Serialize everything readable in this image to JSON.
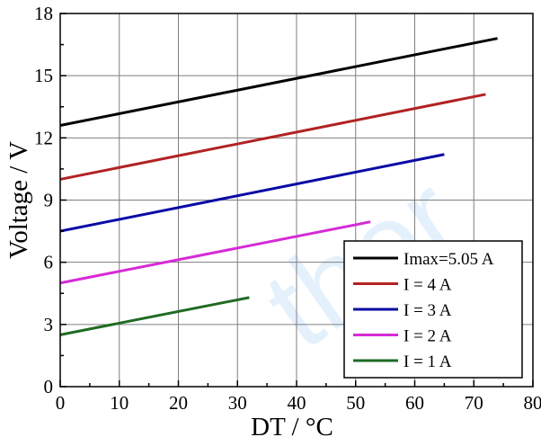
{
  "chart_data": {
    "type": "line",
    "title": "",
    "xlabel": "DT / °C",
    "ylabel": "Voltage / V",
    "xlim": [
      0,
      80
    ],
    "ylim": [
      0,
      18
    ],
    "xticks": [
      0,
      10,
      20,
      30,
      40,
      50,
      60,
      70,
      80
    ],
    "yticks": [
      0,
      3,
      6,
      9,
      12,
      15,
      18
    ],
    "grid": true,
    "legend_position": "bottom-right",
    "watermark": "ther",
    "series": [
      {
        "name": "Imax=5.05 A",
        "color": "#000000",
        "x": [
          0,
          74
        ],
        "y": [
          12.6,
          16.8
        ]
      },
      {
        "name": "I = 4 A",
        "color": "#b22222",
        "x": [
          0,
          72
        ],
        "y": [
          10.0,
          14.1
        ]
      },
      {
        "name": "I = 3 A",
        "color": "#0a0aa6",
        "x": [
          0,
          65
        ],
        "y": [
          7.5,
          11.2
        ]
      },
      {
        "name": "I = 2 A",
        "color": "#d62ad6",
        "x": [
          0,
          52.5
        ],
        "y": [
          5.0,
          7.95
        ]
      },
      {
        "name": "I = 1 A",
        "color": "#1f6b24",
        "x": [
          0,
          32
        ],
        "y": [
          2.5,
          4.3
        ]
      }
    ]
  }
}
